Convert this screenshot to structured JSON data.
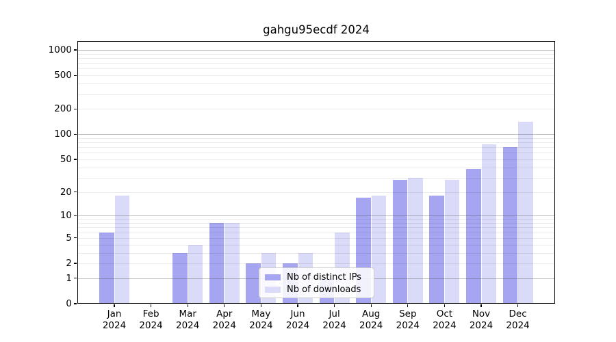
{
  "chart_data": {
    "type": "bar",
    "title": "gahgu95ecdf 2024",
    "categories": [
      "Jan",
      "Feb",
      "Mar",
      "Apr",
      "May",
      "Jun",
      "Jul",
      "Aug",
      "Sep",
      "Oct",
      "Nov",
      "Dec"
    ],
    "year_label": "2024",
    "series": [
      {
        "name": "Nb of distinct IPs",
        "color": "#a5a5f2",
        "values": [
          6,
          0,
          3,
          8,
          2,
          2,
          1,
          17,
          28,
          18,
          38,
          70
        ]
      },
      {
        "name": "Nb of downloads",
        "color": "#dadaf9",
        "values": [
          18,
          0,
          4,
          8,
          3,
          3,
          6,
          18,
          30,
          28,
          75,
          140
        ]
      }
    ],
    "y_ticks": [
      0,
      1,
      2,
      5,
      10,
      20,
      50,
      100,
      200,
      500,
      1000
    ],
    "yscale": "log1p",
    "ylim": [
      0,
      1280
    ],
    "xlabel": "",
    "ylabel": "",
    "grid": "horizontal, log minors light + decade majors darker, drawn over bars",
    "legend_position": "lower center"
  }
}
